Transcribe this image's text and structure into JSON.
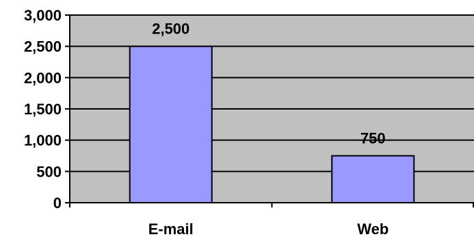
{
  "chart_data": {
    "type": "bar",
    "title": "",
    "xlabel": "",
    "ylabel": "",
    "categories": [
      "E-mail",
      "Web"
    ],
    "values": [
      2500,
      750
    ],
    "data_labels": [
      "2,500",
      "750"
    ],
    "ylim": [
      0,
      3000
    ],
    "yticks": [
      0,
      500,
      1000,
      1500,
      2000,
      2500,
      3000
    ],
    "ytick_labels": [
      "0",
      "500",
      "1,000",
      "1,500",
      "2,000",
      "2,500",
      "3,000"
    ],
    "grid": true,
    "legend": "none",
    "colors": {
      "bar_fill": "#9999ff",
      "bar_stroke": "#000000",
      "plot_background": "#c0c0c0",
      "gridline": "#000000",
      "axis": "#000000"
    }
  }
}
